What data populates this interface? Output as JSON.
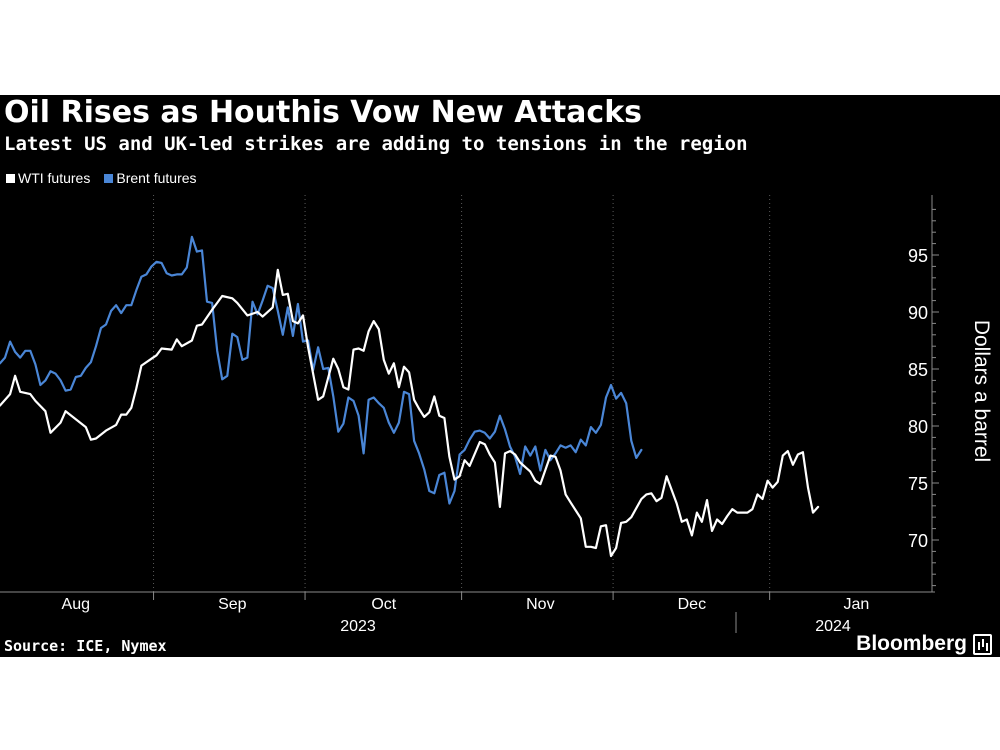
{
  "header": {
    "title": "Oil Rises as Houthis Vow New Attacks",
    "subtitle": "Latest US and UK-led strikes are adding to tensions in the region"
  },
  "footer": {
    "source": "Source: ICE, Nymex",
    "brand": "Bloomberg"
  },
  "colors": {
    "background": "#000000",
    "wti": "#ffffff",
    "brent": "#4a86d6",
    "grid": "#555555"
  },
  "chart_data": {
    "type": "line",
    "title": "Oil Rises as Houthis Vow New Attacks",
    "subtitle": "Latest US and UK-led strikes are adding to tensions in the region",
    "ylabel": "Dollars a barrel",
    "y_axis_side": "right",
    "ylim": [
      65.5,
      99.5
    ],
    "yticks": [
      70,
      75,
      80,
      85,
      90,
      95
    ],
    "grid": "vertical dotted lines at month boundaries",
    "legend_position": "top-left",
    "x_range_days": [
      0,
      179
    ],
    "month_ticks": [
      {
        "label": "Aug",
        "day": 15
      },
      {
        "label": "Sep",
        "day": 46
      },
      {
        "label": "Oct",
        "day": 76
      },
      {
        "label": "Nov",
        "day": 107
      },
      {
        "label": "Dec",
        "day": 137
      },
      {
        "label": "Jan",
        "day": 168
      }
    ],
    "year_labels": [
      {
        "label": "2023",
        "day": 76
      },
      {
        "label": "2024",
        "day": 174
      }
    ],
    "series": [
      {
        "name": "WTI futures",
        "color": "#ffffff",
        "points": [
          [
            0,
            81.8
          ],
          [
            2,
            82.8
          ],
          [
            3,
            84.4
          ],
          [
            4,
            83.0
          ],
          [
            6,
            82.8
          ],
          [
            7,
            82.2
          ],
          [
            9,
            81.3
          ],
          [
            10,
            79.4
          ],
          [
            12,
            80.3
          ],
          [
            13,
            81.3
          ],
          [
            15,
            80.6
          ],
          [
            17,
            79.9
          ],
          [
            18,
            78.8
          ],
          [
            19,
            78.9
          ],
          [
            21,
            79.6
          ],
          [
            23,
            80.1
          ],
          [
            24,
            81.0
          ],
          [
            25,
            81.0
          ],
          [
            26,
            81.6
          ],
          [
            27,
            83.3
          ],
          [
            28,
            85.3
          ],
          [
            30,
            85.9
          ],
          [
            31,
            86.2
          ],
          [
            32,
            86.8
          ],
          [
            34,
            86.7
          ],
          [
            35,
            87.6
          ],
          [
            36,
            87.0
          ],
          [
            38,
            87.5
          ],
          [
            39,
            88.8
          ],
          [
            40,
            88.9
          ],
          [
            42,
            90.2
          ],
          [
            43,
            90.8
          ],
          [
            44,
            91.4
          ],
          [
            46,
            91.2
          ],
          [
            47,
            90.8
          ],
          [
            49,
            89.7
          ],
          [
            51,
            90.0
          ],
          [
            52,
            89.6
          ],
          [
            54,
            90.4
          ],
          [
            55,
            93.7
          ],
          [
            56,
            91.5
          ],
          [
            57,
            91.6
          ],
          [
            58,
            89.2
          ],
          [
            59,
            89.0
          ],
          [
            60,
            89.7
          ],
          [
            61,
            86.9
          ],
          [
            62,
            84.6
          ],
          [
            63,
            82.3
          ],
          [
            64,
            82.6
          ],
          [
            66,
            85.9
          ],
          [
            67,
            85.0
          ],
          [
            68,
            83.4
          ],
          [
            69,
            83.2
          ],
          [
            70,
            86.7
          ],
          [
            71,
            86.8
          ],
          [
            72,
            86.6
          ],
          [
            73,
            88.3
          ],
          [
            74,
            89.2
          ],
          [
            75,
            88.5
          ],
          [
            76,
            85.8
          ],
          [
            77,
            84.6
          ],
          [
            78,
            85.5
          ],
          [
            79,
            83.4
          ],
          [
            80,
            85.2
          ],
          [
            81,
            84.7
          ],
          [
            82,
            82.3
          ],
          [
            83,
            81.5
          ],
          [
            84,
            80.8
          ],
          [
            85,
            81.2
          ],
          [
            86,
            82.6
          ],
          [
            87,
            80.9
          ],
          [
            88,
            80.7
          ],
          [
            89,
            77.3
          ],
          [
            90,
            75.3
          ],
          [
            91,
            75.6
          ],
          [
            92,
            77.0
          ],
          [
            93,
            76.5
          ],
          [
            95,
            78.6
          ],
          [
            96,
            78.4
          ],
          [
            97,
            77.5
          ],
          [
            98,
            76.8
          ],
          [
            99,
            72.9
          ],
          [
            100,
            77.6
          ],
          [
            101,
            77.8
          ],
          [
            102,
            77.5
          ],
          [
            103,
            76.8
          ],
          [
            105,
            76.0
          ],
          [
            106,
            75.2
          ],
          [
            107,
            74.9
          ],
          [
            109,
            77.4
          ],
          [
            110,
            77.3
          ],
          [
            111,
            76.1
          ],
          [
            112,
            74.0
          ],
          [
            113,
            73.3
          ],
          [
            114,
            72.6
          ],
          [
            115,
            71.9
          ],
          [
            116,
            69.4
          ],
          [
            117,
            69.4
          ],
          [
            118,
            69.3
          ],
          [
            119,
            71.2
          ],
          [
            120,
            71.3
          ],
          [
            121,
            68.6
          ],
          [
            122,
            69.3
          ],
          [
            123,
            71.5
          ],
          [
            124,
            71.6
          ],
          [
            125,
            72.0
          ],
          [
            127,
            73.6
          ],
          [
            128,
            74.0
          ],
          [
            129,
            74.1
          ],
          [
            130,
            73.4
          ],
          [
            131,
            73.7
          ],
          [
            132,
            75.6
          ],
          [
            134,
            73.2
          ],
          [
            135,
            71.6
          ],
          [
            136,
            71.8
          ],
          [
            137,
            70.4
          ],
          [
            138,
            72.4
          ],
          [
            139,
            71.6
          ],
          [
            140,
            73.5
          ],
          [
            141,
            70.8
          ],
          [
            142,
            71.8
          ],
          [
            143,
            71.4
          ],
          [
            144,
            72.1
          ],
          [
            145,
            72.7
          ],
          [
            146,
            72.4
          ],
          [
            148,
            72.4
          ],
          [
            149,
            72.7
          ],
          [
            150,
            74.0
          ],
          [
            151,
            73.6
          ],
          [
            152,
            75.2
          ],
          [
            153,
            74.6
          ],
          [
            154,
            75.1
          ],
          [
            155,
            77.4
          ],
          [
            156,
            77.8
          ],
          [
            157,
            76.6
          ],
          [
            158,
            77.5
          ],
          [
            159,
            77.7
          ],
          [
            160,
            74.6
          ],
          [
            161,
            72.4
          ],
          [
            162,
            72.9
          ]
        ]
      },
      {
        "name": "Brent futures",
        "color": "#4a86d6",
        "points": [
          [
            0,
            85.5
          ],
          [
            1,
            86.0
          ],
          [
            2,
            87.4
          ],
          [
            3,
            86.5
          ],
          [
            4,
            86.0
          ],
          [
            5,
            86.6
          ],
          [
            6,
            86.6
          ],
          [
            7,
            85.4
          ],
          [
            8,
            83.6
          ],
          [
            9,
            84.0
          ],
          [
            10,
            84.8
          ],
          [
            11,
            84.6
          ],
          [
            12,
            84.0
          ],
          [
            13,
            83.1
          ],
          [
            14,
            83.2
          ],
          [
            15,
            84.3
          ],
          [
            16,
            84.4
          ],
          [
            17,
            85.1
          ],
          [
            18,
            85.6
          ],
          [
            19,
            87.0
          ],
          [
            20,
            88.6
          ],
          [
            21,
            88.9
          ],
          [
            22,
            90.1
          ],
          [
            23,
            90.6
          ],
          [
            24,
            89.9
          ],
          [
            25,
            90.6
          ],
          [
            26,
            90.6
          ],
          [
            27,
            91.9
          ],
          [
            28,
            93.1
          ],
          [
            29,
            93.3
          ],
          [
            30,
            94.0
          ],
          [
            31,
            94.4
          ],
          [
            32,
            94.3
          ],
          [
            33,
            93.4
          ],
          [
            34,
            93.2
          ],
          [
            35,
            93.3
          ],
          [
            36,
            93.3
          ],
          [
            37,
            93.9
          ],
          [
            38,
            96.6
          ],
          [
            39,
            95.3
          ],
          [
            40,
            95.4
          ],
          [
            41,
            90.9
          ],
          [
            42,
            90.8
          ],
          [
            43,
            86.6
          ],
          [
            44,
            84.1
          ],
          [
            45,
            84.4
          ],
          [
            46,
            88.1
          ],
          [
            47,
            87.8
          ],
          [
            48,
            85.8
          ],
          [
            49,
            86.0
          ],
          [
            50,
            90.9
          ],
          [
            51,
            89.8
          ],
          [
            52,
            91.0
          ],
          [
            53,
            92.3
          ],
          [
            54,
            92.1
          ],
          [
            55,
            90.1
          ],
          [
            56,
            88.0
          ],
          [
            57,
            90.4
          ],
          [
            58,
            87.9
          ],
          [
            59,
            90.7
          ],
          [
            60,
            87.4
          ],
          [
            61,
            87.5
          ],
          [
            62,
            84.9
          ],
          [
            63,
            86.9
          ],
          [
            64,
            85.0
          ],
          [
            65,
            85.1
          ],
          [
            66,
            82.6
          ],
          [
            67,
            79.5
          ],
          [
            68,
            80.2
          ],
          [
            69,
            82.5
          ],
          [
            70,
            82.2
          ],
          [
            71,
            80.9
          ],
          [
            72,
            77.6
          ],
          [
            73,
            82.3
          ],
          [
            74,
            82.5
          ],
          [
            75,
            82.0
          ],
          [
            76,
            81.6
          ],
          [
            77,
            80.3
          ],
          [
            78,
            79.4
          ],
          [
            79,
            80.3
          ],
          [
            80,
            83.0
          ],
          [
            81,
            82.8
          ],
          [
            82,
            78.7
          ],
          [
            83,
            77.6
          ],
          [
            84,
            76.2
          ],
          [
            85,
            74.3
          ],
          [
            86,
            74.1
          ],
          [
            87,
            75.7
          ],
          [
            88,
            75.9
          ],
          [
            89,
            73.2
          ],
          [
            90,
            74.3
          ],
          [
            91,
            77.5
          ],
          [
            92,
            77.9
          ],
          [
            93,
            78.8
          ],
          [
            94,
            79.5
          ],
          [
            95,
            79.6
          ],
          [
            96,
            79.4
          ],
          [
            97,
            78.9
          ],
          [
            98,
            79.5
          ],
          [
            99,
            80.9
          ],
          [
            100,
            79.7
          ],
          [
            101,
            78.2
          ],
          [
            102,
            77.3
          ],
          [
            103,
            75.8
          ],
          [
            104,
            78.2
          ],
          [
            105,
            77.4
          ],
          [
            106,
            78.2
          ],
          [
            107,
            76.1
          ],
          [
            108,
            77.9
          ],
          [
            109,
            77.0
          ],
          [
            110,
            77.6
          ],
          [
            111,
            78.3
          ],
          [
            112,
            78.1
          ],
          [
            113,
            78.3
          ],
          [
            114,
            77.7
          ],
          [
            115,
            78.8
          ],
          [
            116,
            78.3
          ],
          [
            117,
            79.9
          ],
          [
            118,
            79.4
          ],
          [
            119,
            80.1
          ],
          [
            120,
            82.5
          ],
          [
            121,
            83.6
          ],
          [
            122,
            82.4
          ],
          [
            123,
            82.9
          ],
          [
            124,
            82.0
          ],
          [
            125,
            78.7
          ],
          [
            126,
            77.2
          ],
          [
            127,
            77.9
          ]
        ]
      }
    ]
  }
}
